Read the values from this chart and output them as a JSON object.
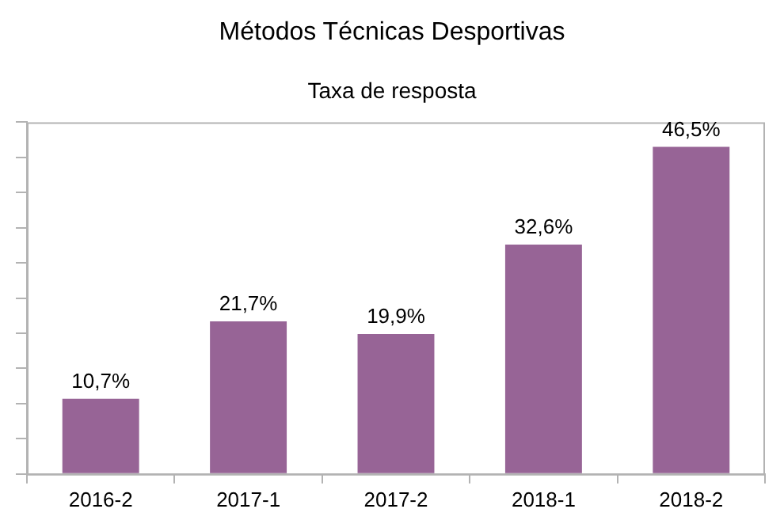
{
  "chart_data": {
    "type": "bar",
    "title": "Métodos Técnicas Desportivas",
    "subtitle": "Taxa de resposta",
    "categories": [
      "2016-2",
      "2017-1",
      "2017-2",
      "2018-1",
      "2018-2"
    ],
    "values": [
      10.7,
      21.7,
      19.9,
      32.6,
      46.5
    ],
    "value_labels": [
      "10,7%",
      "21,7%",
      "19,9%",
      "32,6%",
      "46,5%"
    ],
    "color": "#976496",
    "ylim": [
      0,
      50
    ],
    "yticks": [
      {
        "value": 0,
        "label": null
      },
      {
        "value": 5,
        "label": null
      },
      {
        "value": 10,
        "label": null
      },
      {
        "value": 15,
        "label": null
      },
      {
        "value": 20,
        "label": null
      },
      {
        "value": 25,
        "label": null
      },
      {
        "value": 30,
        "label": null
      },
      {
        "value": 35,
        "label": null
      },
      {
        "value": 40,
        "label": null
      },
      {
        "value": 45,
        "label": null
      },
      {
        "value": 50,
        "label": null
      }
    ],
    "tick_labels": "x",
    "grid": false,
    "legend": false
  }
}
